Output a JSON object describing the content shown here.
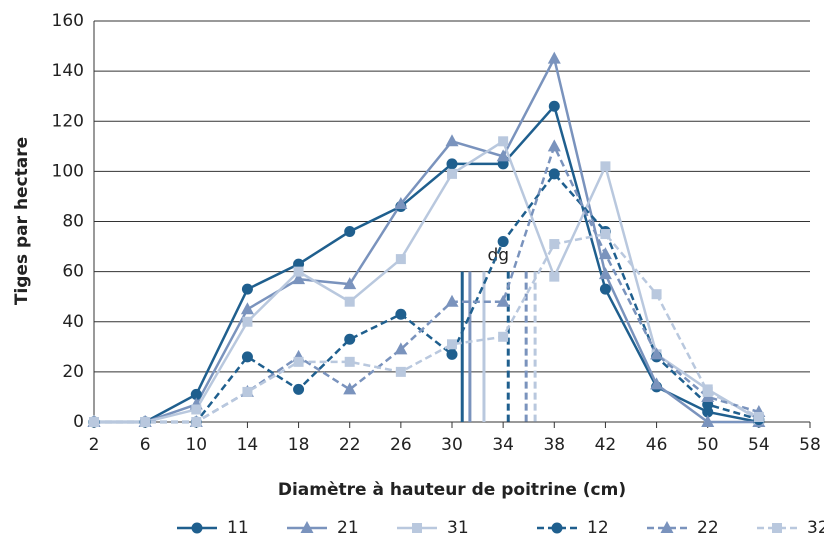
{
  "chart_data": {
    "type": "line",
    "x_label": "Diamètre à hauteur de poitrine (cm)",
    "y_label": "Tiges par hectare",
    "x": [
      2,
      6,
      10,
      14,
      18,
      22,
      26,
      30,
      34,
      38,
      42,
      46,
      50,
      54
    ],
    "xlim": [
      2,
      58
    ],
    "xticks": [
      2,
      6,
      10,
      14,
      18,
      22,
      26,
      30,
      34,
      38,
      42,
      46,
      50,
      54,
      58
    ],
    "ylim": [
      0,
      160
    ],
    "yticks": [
      0,
      20,
      40,
      60,
      80,
      100,
      120,
      140,
      160
    ],
    "grid": true,
    "dg_label": "dg",
    "series": [
      {
        "name": "11",
        "color": "#1f5f8e",
        "marker": "circle",
        "dashed": false,
        "dg": 30.8,
        "values": [
          0,
          0,
          11,
          53,
          63,
          76,
          86,
          103,
          103,
          126,
          53,
          14,
          4,
          0
        ]
      },
      {
        "name": "21",
        "color": "#7a93bd",
        "marker": "triangle",
        "dashed": false,
        "dg": 31.4,
        "values": [
          0,
          0,
          7,
          45,
          57,
          55,
          87,
          112,
          106,
          145,
          59,
          15,
          0,
          0
        ]
      },
      {
        "name": "31",
        "color": "#b9c8de",
        "marker": "square",
        "dashed": false,
        "dg": 32.5,
        "values": [
          0,
          0,
          5,
          40,
          60,
          48,
          65,
          99,
          112,
          58,
          102,
          27,
          13,
          1
        ]
      },
      {
        "name": "12",
        "color": "#1f5f8e",
        "marker": "circle",
        "dashed": true,
        "dg": 34.4,
        "values": [
          0,
          0,
          0,
          26,
          13,
          33,
          43,
          27,
          72,
          99,
          76,
          26,
          7,
          1
        ]
      },
      {
        "name": "22",
        "color": "#7a93bd",
        "marker": "triangle",
        "dashed": true,
        "dg": 35.8,
        "values": [
          0,
          0,
          0,
          12,
          26,
          13,
          29,
          48,
          48,
          110,
          67,
          27,
          10,
          4
        ]
      },
      {
        "name": "32",
        "color": "#b9c8de",
        "marker": "square",
        "dashed": true,
        "dg": 36.5,
        "values": [
          0,
          0,
          0,
          12,
          24,
          24,
          20,
          31,
          34,
          71,
          75,
          51,
          12,
          2
        ]
      }
    ]
  }
}
